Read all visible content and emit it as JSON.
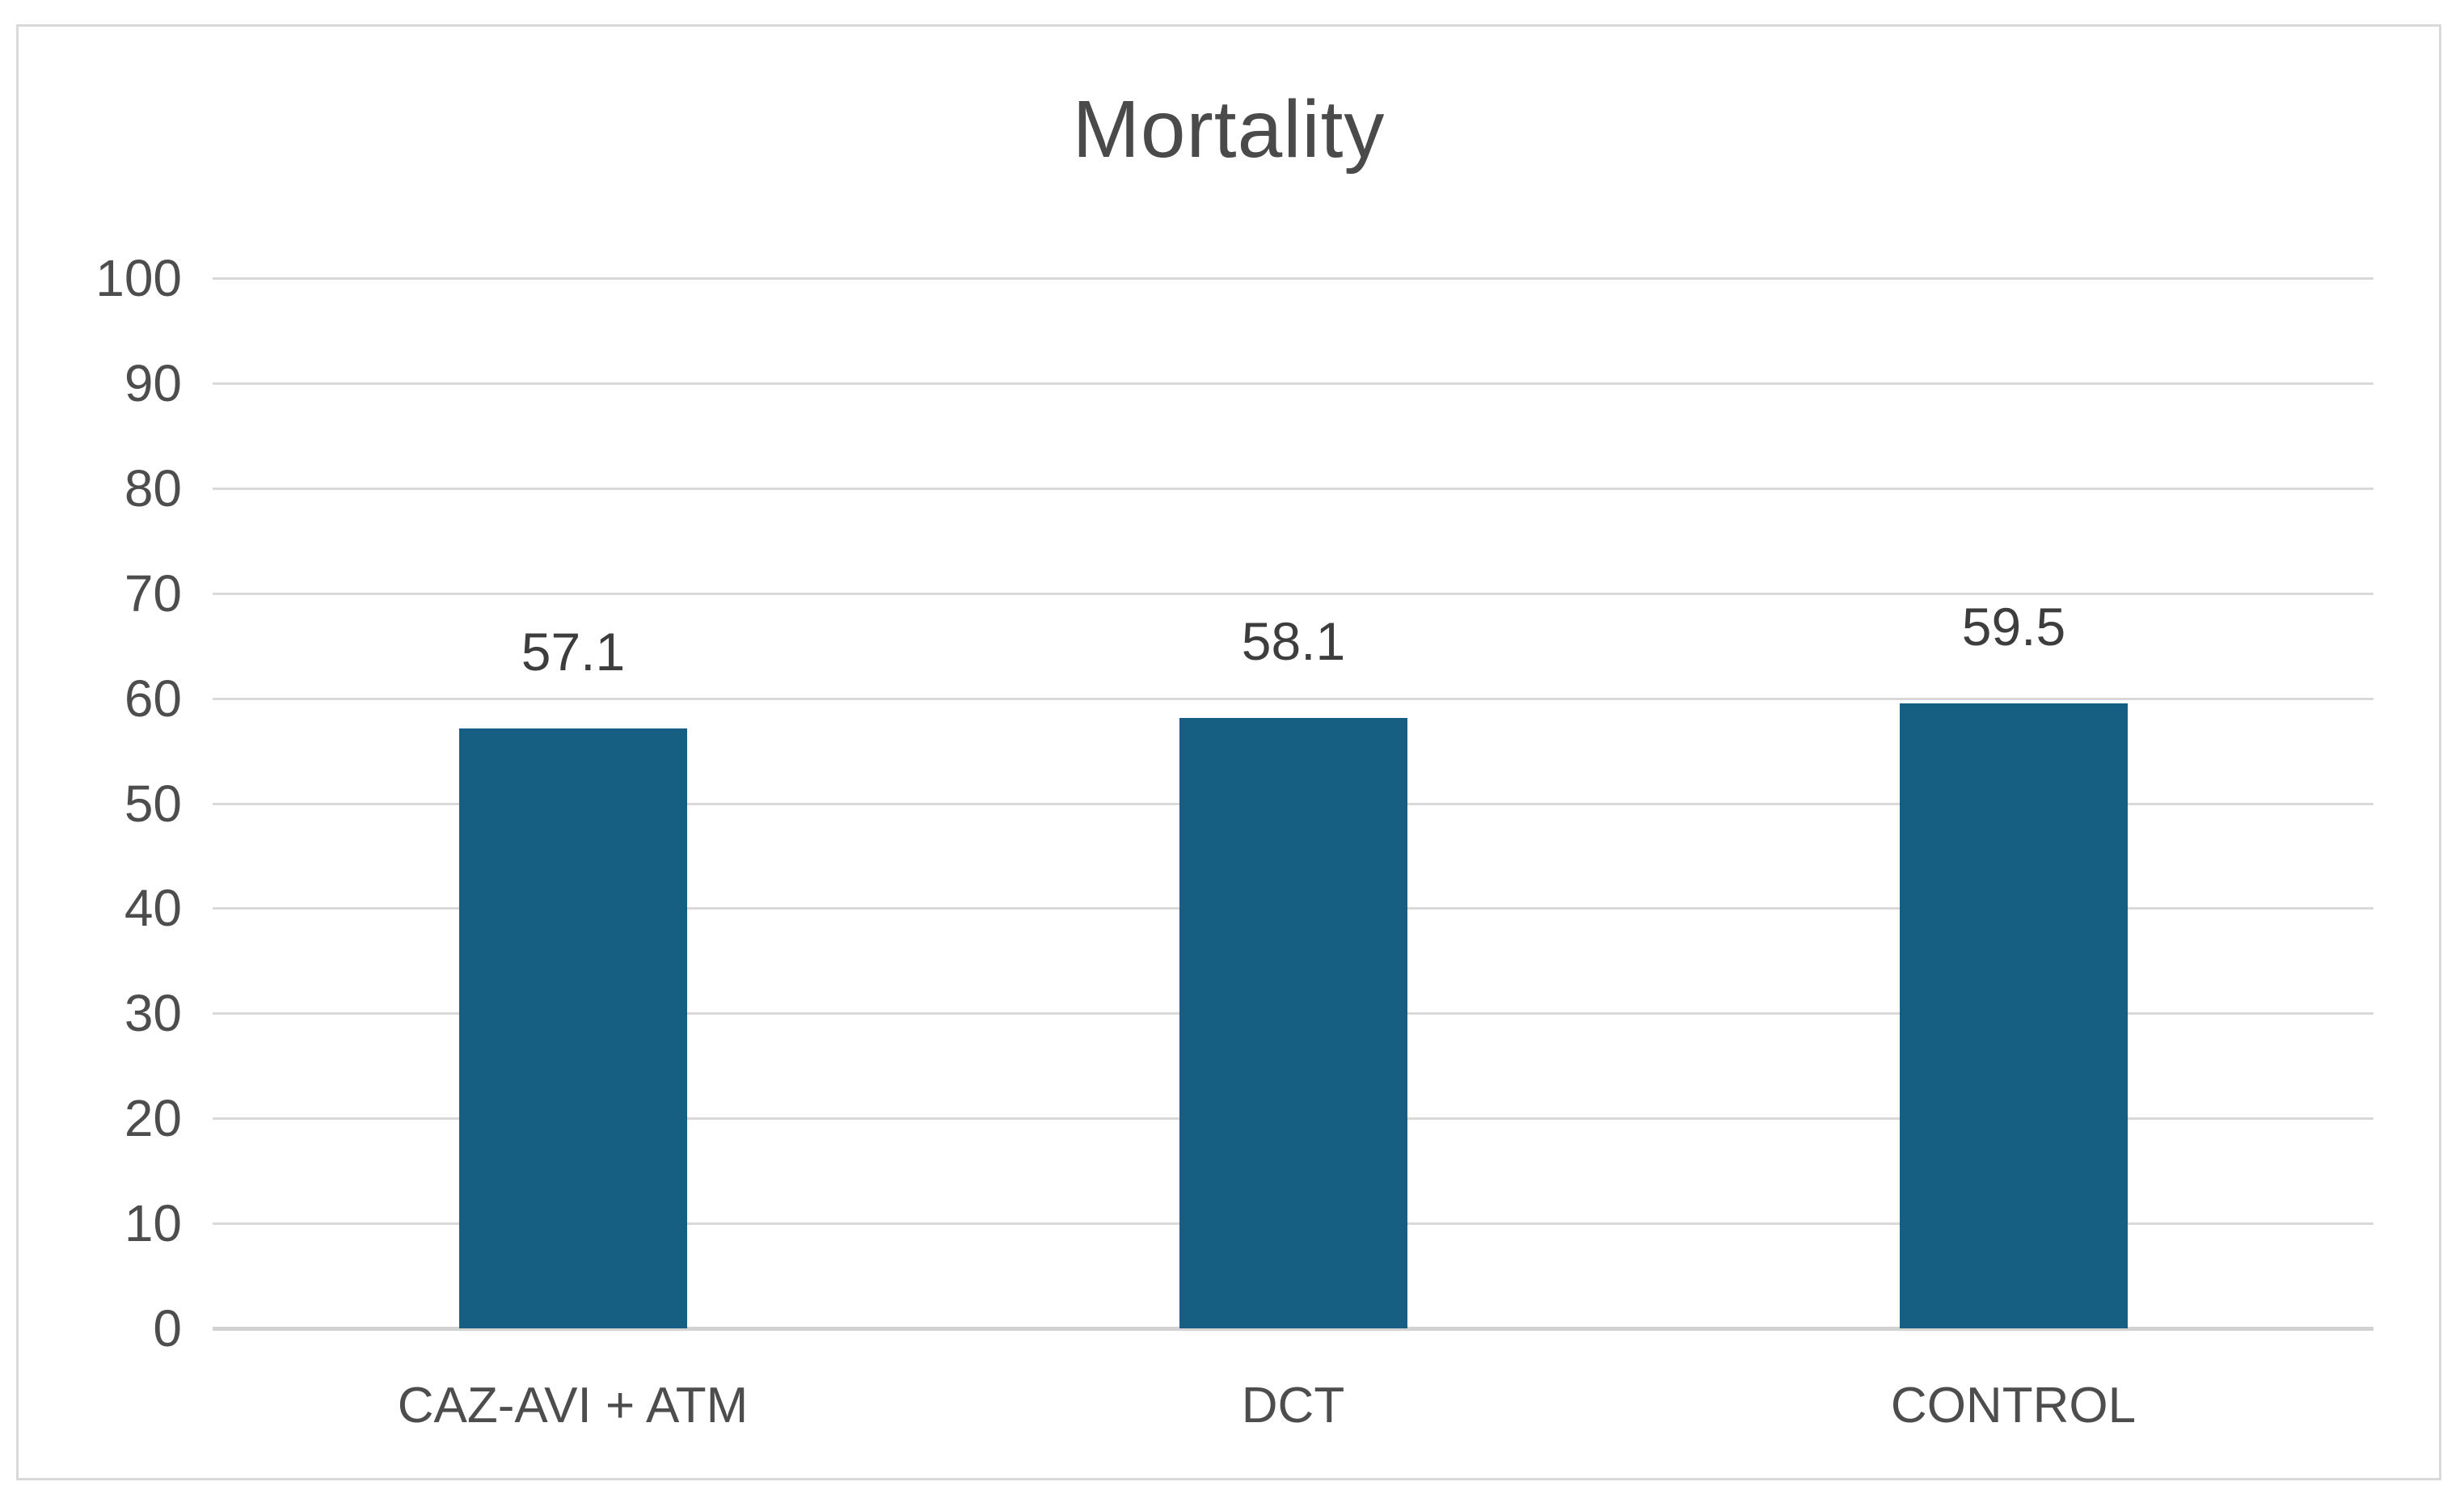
{
  "chart_data": {
    "type": "bar",
    "title": "Mortality",
    "categories": [
      "CAZ-AVI + ATM",
      "DCT",
      "CONTROL"
    ],
    "values": [
      57.1,
      58.1,
      59.5
    ],
    "data_labels": [
      "57.1",
      "58.1",
      "59.5"
    ],
    "xlabel": "",
    "ylabel": "",
    "ylim": [
      0,
      100
    ],
    "ytick_step": 10,
    "ytick_labels": [
      "0",
      "10",
      "20",
      "30",
      "40",
      "50",
      "60",
      "70",
      "80",
      "90",
      "100"
    ],
    "grid": "horizontal",
    "legend_position": "none",
    "bar_color": "#165E82",
    "gridline_color": "#D9D9D9",
    "baseline_color": "#D2D2D2",
    "title_color": "#4A4A4A",
    "tick_label_color": "#4D4D4D",
    "data_label_color": "#3D3D3D",
    "panel_border_color": "#D9D9D9",
    "background_color": "#FFFFFF"
  }
}
